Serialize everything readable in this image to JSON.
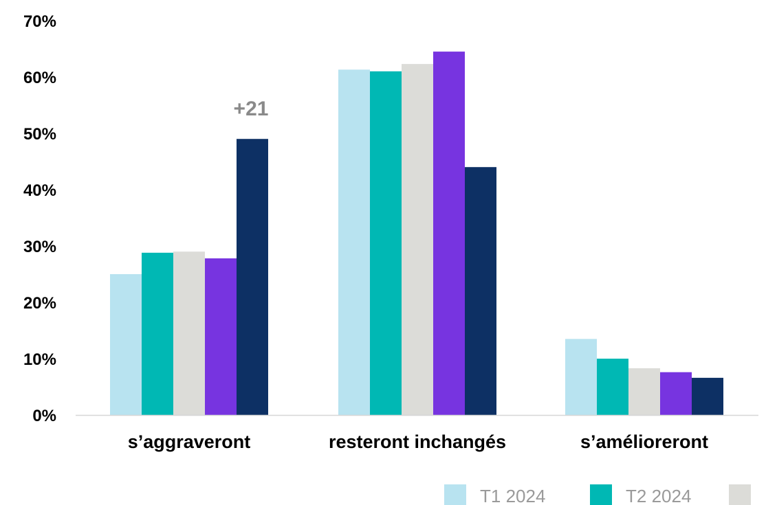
{
  "chart_data": {
    "type": "bar",
    "categories": [
      "s’aggraveront",
      "resteront inchangés",
      "s’amélioreront"
    ],
    "series": [
      {
        "name": "T1 2024",
        "color": "#b8e3f0",
        "values": [
          25,
          61.3,
          13.5
        ]
      },
      {
        "name": "T2 2024",
        "color": "#00b8b4",
        "values": [
          28.8,
          61,
          10
        ]
      },
      {
        "color": "#dcdcd8",
        "values": [
          29,
          62.3,
          8.3
        ]
      },
      {
        "color": "#7734e0",
        "values": [
          27.8,
          64.5,
          7.6
        ]
      },
      {
        "color": "#0d3064",
        "values": [
          49,
          44,
          6.6
        ]
      }
    ],
    "ylim": [
      0,
      70
    ],
    "yticks": [
      "0%",
      "10%",
      "20%",
      "30%",
      "40%",
      "50%",
      "60%",
      "70%"
    ],
    "annotations": [
      {
        "text": "+21",
        "category": 0,
        "series": 4
      }
    ],
    "legend_position": "bottom-right",
    "grid": false
  }
}
